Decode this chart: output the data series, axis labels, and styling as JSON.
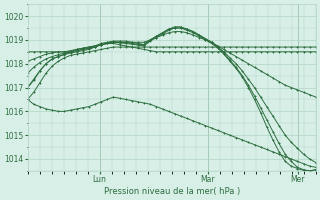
{
  "bg_color": "#d8efe8",
  "grid_color": "#b0d4c4",
  "line_color": "#2d6e3e",
  "marker": "+",
  "xlabel": "Pression niveau de la mer( hPa )",
  "ylim": [
    1013.5,
    1020.5
  ],
  "xlim": [
    0,
    96
  ],
  "yticks": [
    1014,
    1015,
    1016,
    1017,
    1018,
    1019,
    1020
  ],
  "xtick_positions": [
    24,
    60,
    90
  ],
  "xtick_labels": [
    "Lun",
    "Mar",
    "Mer"
  ],
  "series": [
    [
      1017.0,
      1017.3,
      1017.7,
      1018.0,
      1018.2,
      1018.3,
      1018.4,
      1018.5,
      1018.6,
      1018.65,
      1018.7,
      1018.75,
      1018.8,
      1018.85,
      1018.85,
      1018.8,
      1018.75,
      1018.7,
      1018.65,
      1018.6,
      1018.55,
      1018.5,
      1018.5,
      1018.5,
      1018.5,
      1018.5,
      1018.5,
      1018.5,
      1018.5,
      1018.5,
      1018.5,
      1018.5,
      1018.5,
      1018.5,
      1018.5,
      1018.5,
      1018.5,
      1018.5,
      1018.5,
      1018.5,
      1018.5,
      1018.5,
      1018.5,
      1018.5,
      1018.5,
      1018.5,
      1018.5,
      1018.5
    ],
    [
      1016.5,
      1016.8,
      1017.2,
      1017.6,
      1017.9,
      1018.1,
      1018.25,
      1018.35,
      1018.4,
      1018.45,
      1018.5,
      1018.55,
      1018.6,
      1018.65,
      1018.7,
      1018.7,
      1018.7,
      1018.7,
      1018.7,
      1018.7,
      1018.7,
      1018.7,
      1018.7,
      1018.7,
      1018.7,
      1018.7,
      1018.7,
      1018.7,
      1018.7,
      1018.7,
      1018.7,
      1018.7,
      1018.7,
      1018.7,
      1018.7,
      1018.7,
      1018.7,
      1018.7,
      1018.7,
      1018.7,
      1018.7,
      1018.7,
      1018.7,
      1018.7,
      1018.7,
      1018.7,
      1018.7,
      1018.7
    ],
    [
      1018.1,
      1018.2,
      1018.3,
      1018.4,
      1018.45,
      1018.5,
      1018.5,
      1018.5,
      1018.55,
      1018.6,
      1018.65,
      1018.7,
      1018.8,
      1018.85,
      1018.9,
      1018.9,
      1018.9,
      1018.9,
      1018.9,
      1018.9,
      1019.0,
      1019.1,
      1019.2,
      1019.3,
      1019.35,
      1019.35,
      1019.3,
      1019.2,
      1019.1,
      1019.0,
      1018.9,
      1018.75,
      1018.6,
      1018.45,
      1018.3,
      1018.15,
      1018.0,
      1017.85,
      1017.7,
      1017.55,
      1017.4,
      1017.25,
      1017.1,
      1017.0,
      1016.9,
      1016.8,
      1016.7,
      1016.6
    ],
    [
      1018.5,
      1018.5,
      1018.5,
      1018.5,
      1018.5,
      1018.5,
      1018.5,
      1018.55,
      1018.6,
      1018.65,
      1018.7,
      1018.75,
      1018.85,
      1018.9,
      1018.95,
      1018.95,
      1018.95,
      1018.9,
      1018.85,
      1018.8,
      1019.0,
      1019.15,
      1019.3,
      1019.45,
      1019.5,
      1019.5,
      1019.45,
      1019.35,
      1019.2,
      1019.05,
      1018.9,
      1018.7,
      1018.5,
      1018.25,
      1018.0,
      1017.7,
      1017.35,
      1017.0,
      1016.6,
      1016.2,
      1015.8,
      1015.4,
      1015.0,
      1014.7,
      1014.45,
      1014.2,
      1014.0,
      1013.85
    ],
    [
      1017.6,
      1017.85,
      1018.05,
      1018.2,
      1018.3,
      1018.38,
      1018.45,
      1018.5,
      1018.55,
      1018.6,
      1018.65,
      1018.72,
      1018.8,
      1018.88,
      1018.92,
      1018.9,
      1018.88,
      1018.85,
      1018.82,
      1018.8,
      1019.0,
      1019.15,
      1019.3,
      1019.45,
      1019.55,
      1019.55,
      1019.45,
      1019.35,
      1019.2,
      1019.05,
      1018.9,
      1018.7,
      1018.45,
      1018.15,
      1017.85,
      1017.5,
      1017.1,
      1016.65,
      1016.15,
      1015.65,
      1015.15,
      1014.65,
      1014.2,
      1013.9,
      1013.65,
      1013.55,
      1013.5,
      1013.55
    ],
    [
      1017.0,
      1017.35,
      1017.7,
      1018.0,
      1018.2,
      1018.3,
      1018.38,
      1018.45,
      1018.5,
      1018.55,
      1018.6,
      1018.7,
      1018.8,
      1018.85,
      1018.9,
      1018.88,
      1018.85,
      1018.82,
      1018.78,
      1018.75,
      1018.95,
      1019.1,
      1019.25,
      1019.4,
      1019.5,
      1019.5,
      1019.4,
      1019.3,
      1019.15,
      1019.0,
      1018.85,
      1018.65,
      1018.4,
      1018.1,
      1017.8,
      1017.45,
      1017.0,
      1016.5,
      1015.95,
      1015.35,
      1014.8,
      1014.3,
      1013.9,
      1013.7,
      1013.6,
      1013.52,
      1013.5,
      1013.55
    ],
    [
      1016.5,
      1016.3,
      1016.2,
      1016.1,
      1016.05,
      1016.0,
      1016.0,
      1016.05,
      1016.1,
      1016.15,
      1016.2,
      1016.3,
      1016.4,
      1016.5,
      1016.6,
      1016.55,
      1016.5,
      1016.45,
      1016.4,
      1016.35,
      1016.3,
      1016.2,
      1016.1,
      1016.0,
      1015.9,
      1015.8,
      1015.7,
      1015.6,
      1015.5,
      1015.4,
      1015.3,
      1015.2,
      1015.1,
      1015.0,
      1014.9,
      1014.8,
      1014.7,
      1014.6,
      1014.5,
      1014.4,
      1014.3,
      1014.2,
      1014.1,
      1014.0,
      1013.9,
      1013.8,
      1013.7,
      1013.65
    ]
  ]
}
